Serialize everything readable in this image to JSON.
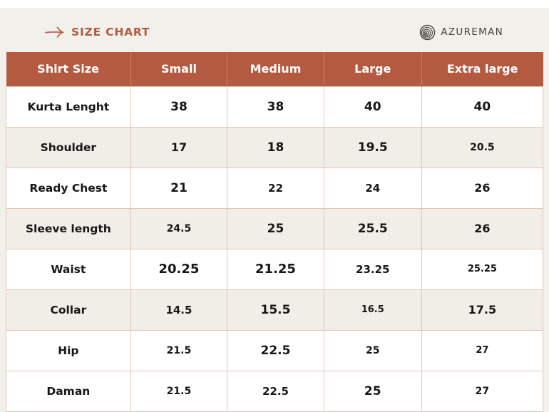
{
  "page": {
    "title": "SIZE CHART",
    "brand": "AZUREMAN"
  },
  "colors": {
    "accent": "#b45a40",
    "page_bg": "#f2f0ea",
    "row_alt_bg": "#f1eee8",
    "border": "#e5c6b6",
    "header_text": "#ffffff",
    "body_text": "#171717",
    "brand_text": "#46423c",
    "header_divider": "#c67f63"
  },
  "icons": {
    "arrow": "right-arrow-icon",
    "logo": "azureman-spiral-logo-icon"
  },
  "table": {
    "columns": [
      "Shirt Size",
      "Small",
      "Medium",
      "Large",
      "Extra large"
    ],
    "rows": [
      {
        "label": "Kurta Lenght",
        "values": [
          "38",
          "38",
          "40",
          "40"
        ],
        "alt": false,
        "sizes": [
          17,
          17,
          17,
          17
        ]
      },
      {
        "label": "Shoulder",
        "values": [
          "17",
          "18",
          "19.5",
          "20.5"
        ],
        "alt": true,
        "sizes": [
          16,
          17,
          17,
          14
        ]
      },
      {
        "label": "Ready Chest",
        "values": [
          "21",
          "22",
          "24",
          "26"
        ],
        "alt": false,
        "sizes": [
          17,
          15,
          15,
          16
        ]
      },
      {
        "label": "Sleeve length",
        "values": [
          "24.5",
          "25",
          "25.5",
          "26"
        ],
        "alt": true,
        "sizes": [
          14,
          17,
          17,
          16
        ]
      },
      {
        "label": "Waist",
        "values": [
          "20.25",
          "21.25",
          "23.25",
          "25.25"
        ],
        "alt": false,
        "sizes": [
          18,
          18,
          15,
          13
        ]
      },
      {
        "label": "Collar",
        "values": [
          "14.5",
          "15.5",
          "16.5",
          "17.5"
        ],
        "alt": true,
        "sizes": [
          15,
          17,
          13,
          16
        ]
      },
      {
        "label": "Hip",
        "values": [
          "21.5",
          "22.5",
          "25",
          "27"
        ],
        "alt": false,
        "sizes": [
          14,
          17,
          14,
          13
        ]
      },
      {
        "label": "Daman",
        "values": [
          "21.5",
          "22.5",
          "25",
          "27"
        ],
        "alt": false,
        "sizes": [
          14,
          15,
          17,
          14
        ]
      }
    ]
  }
}
